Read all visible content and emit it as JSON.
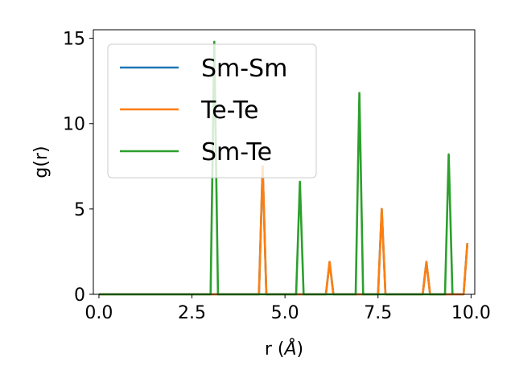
{
  "chart_data": {
    "type": "line",
    "title": "",
    "xlabel": "r (",
    "xlabel_symbol": "Å",
    "xlabel_close": ")",
    "ylabel": "g(r)",
    "xlim": [
      -0.15,
      10.1
    ],
    "ylim": [
      0,
      15.5
    ],
    "xticks": [
      0.0,
      2.5,
      5.0,
      7.5,
      10.0
    ],
    "xtick_labels": [
      "0.0",
      "2.5",
      "5.0",
      "7.5",
      "10.0"
    ],
    "yticks": [
      0,
      5,
      10,
      15
    ],
    "ytick_labels": [
      "0",
      "5",
      "10",
      "15"
    ],
    "grid": false,
    "legend_position": "top-left",
    "series": [
      {
        "name": "Sm-Sm",
        "color": "#1f77b4",
        "x": [
          0.0,
          4.3,
          4.4,
          4.5,
          6.1,
          6.2,
          6.3,
          7.5,
          7.6,
          7.7,
          8.7,
          8.8,
          8.9,
          9.8,
          9.9
        ],
        "y": [
          0,
          0,
          7.5,
          0,
          0,
          1.9,
          0,
          0,
          5.0,
          0,
          0,
          1.9,
          0,
          0,
          3.0
        ]
      },
      {
        "name": "Te-Te",
        "color": "#ff7f0e",
        "x": [
          0.0,
          4.3,
          4.4,
          4.5,
          6.1,
          6.2,
          6.3,
          7.5,
          7.6,
          7.7,
          8.7,
          8.8,
          8.9,
          9.8,
          9.9
        ],
        "y": [
          0,
          0,
          7.5,
          0,
          0,
          1.9,
          0,
          0,
          5.0,
          0,
          0,
          1.9,
          0,
          0,
          3.0
        ]
      },
      {
        "name": "Sm-Te",
        "color": "#2ca02c",
        "x": [
          0.0,
          3.0,
          3.1,
          3.2,
          5.3,
          5.4,
          5.5,
          6.9,
          7.0,
          7.1,
          9.3,
          9.4,
          9.5
        ],
        "y": [
          0,
          0,
          14.8,
          0,
          0,
          6.6,
          0,
          0,
          11.8,
          0,
          0,
          8.2,
          0
        ]
      }
    ]
  }
}
